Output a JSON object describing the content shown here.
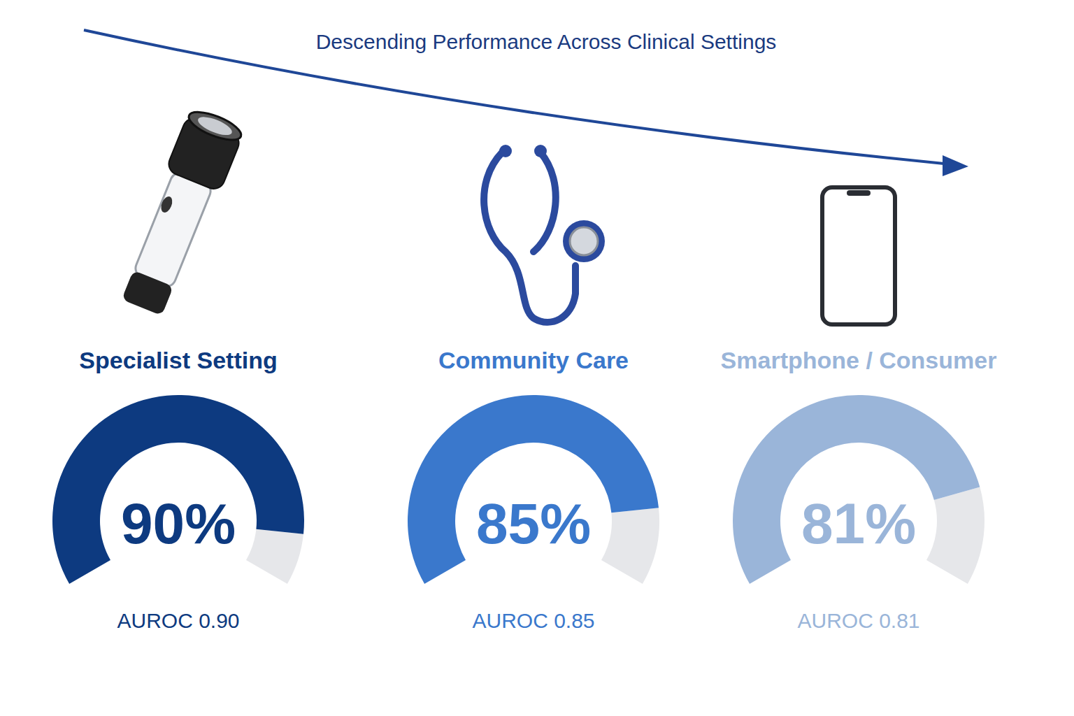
{
  "chart_data": {
    "type": "gauge",
    "title": "Descending Performance Across Clinical Settings",
    "categories": [
      "Specialist Setting",
      "Community Care",
      "Smartphone / Consumer"
    ],
    "values": [
      90,
      85,
      81
    ],
    "value_labels": [
      "90%",
      "85%",
      "81%"
    ],
    "auroc_labels": [
      "AUROC 0.90",
      "AUROC 0.85",
      "AUROC 0.81"
    ],
    "colors": [
      "#0d3a80",
      "#3a78cc",
      "#9ab5d9"
    ],
    "ylim": [
      0,
      100
    ],
    "data_labels": true
  }
}
